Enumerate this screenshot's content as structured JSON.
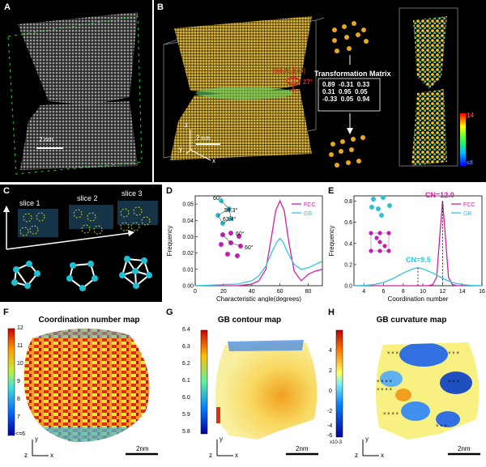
{
  "panels": {
    "A": {
      "letter": "A",
      "scale": "2 nm"
    },
    "B": {
      "letter": "B",
      "scale": "2 nm",
      "axis_z": "z",
      "axis_y": "y",
      "axis_x": "x",
      "rotation": "[0,0.73,0.69]",
      "angle": "27°",
      "matrix_title": "Transformation Matrix",
      "matrix": [
        [
          "0.89",
          "-0.31",
          "0.33"
        ],
        [
          "0.31",
          "0.95",
          "0.05"
        ],
        [
          "-0.33",
          "0.05",
          "0.94"
        ]
      ],
      "cbar_max": "14",
      "cbar_min": "≤8"
    },
    "C": {
      "letter": "C",
      "slices": [
        "slice 1",
        "slice 2",
        "slice 3"
      ]
    },
    "D": {
      "letter": "D",
      "angles": [
        "60°",
        "58.3°",
        "63.4°",
        "60°",
        "60°"
      ]
    },
    "E": {
      "letter": "E",
      "cn_fcc": "CN=12.0",
      "cn_gb": "CN=9.5"
    },
    "F": {
      "letter": "F",
      "title": "Coordination number map",
      "cbar_ticks": [
        "12",
        "11",
        "10",
        "9",
        "8",
        "7",
        "<=6"
      ],
      "scale": "2nm",
      "ax_z": "z",
      "ax_y": "y",
      "ax_x": "x"
    },
    "G": {
      "letter": "G",
      "title": "GB contour map",
      "cbar_ticks": [
        "6.4",
        "6.3",
        "6.2",
        "6.1",
        "6.0",
        "5.9",
        "5.8"
      ],
      "scale": "2nm",
      "ax_z": "z",
      "ax_y": "y",
      "ax_x": "x"
    },
    "H": {
      "letter": "H",
      "title": "GB curvature map",
      "cbar_ticks": [
        "4",
        "2",
        "0",
        "-2",
        "-4",
        "-6"
      ],
      "cbar_exp": "x10-3",
      "scale": "2nm",
      "ax_z": "z",
      "ax_y": "y",
      "ax_x": "x"
    }
  },
  "chart_data": [
    {
      "type": "line",
      "panel": "D",
      "xlabel": "Characteristic angle(degrees)",
      "ylabel": "Frequency",
      "xlim": [
        0,
        90
      ],
      "ylim": [
        0,
        0.055
      ],
      "xticks": [
        "0",
        "20",
        "40",
        "60",
        "80"
      ],
      "yticks": [
        "0.00",
        "0.01",
        "0.02",
        "0.03",
        "0.04",
        "0.05"
      ],
      "series": [
        {
          "name": "FCC",
          "color": "#d020a0",
          "x": [
            0,
            30,
            40,
            45,
            50,
            54,
            57,
            60,
            63,
            66,
            70,
            75,
            80,
            85,
            90
          ],
          "y": [
            0,
            0,
            0.001,
            0.003,
            0.01,
            0.03,
            0.046,
            0.052,
            0.046,
            0.028,
            0.009,
            0.003,
            0.007,
            0.009,
            0.01
          ]
        },
        {
          "name": "GB",
          "color": "#30c8d8",
          "x": [
            0,
            30,
            40,
            45,
            50,
            55,
            58,
            60,
            62,
            65,
            70,
            75,
            80,
            85,
            90
          ],
          "y": [
            0,
            0.001,
            0.003,
            0.006,
            0.012,
            0.022,
            0.027,
            0.029,
            0.027,
            0.021,
            0.013,
            0.01,
            0.011,
            0.013,
            0.015
          ]
        }
      ]
    },
    {
      "type": "line",
      "panel": "E",
      "xlabel": "Coordination number",
      "ylabel": "Frequency",
      "xlim": [
        3,
        16
      ],
      "ylim": [
        0,
        0.85
      ],
      "xticks": [
        "4",
        "6",
        "8",
        "10",
        "12",
        "14",
        "16"
      ],
      "yticks": [
        "0.0",
        "0.2",
        "0.4",
        "0.6",
        "0.8"
      ],
      "series": [
        {
          "name": "FCC",
          "color": "#d020a0",
          "x": [
            3,
            10.5,
            11,
            11.4,
            11.7,
            12,
            12.3,
            12.6,
            13,
            13.5,
            16
          ],
          "y": [
            0,
            0,
            0.01,
            0.08,
            0.45,
            0.8,
            0.45,
            0.08,
            0.01,
            0,
            0
          ]
        },
        {
          "name": "GB",
          "color": "#30c8d8",
          "x": [
            3,
            4,
            5,
            6,
            7,
            8,
            9,
            9.5,
            10,
            11,
            12,
            13,
            14,
            15,
            16
          ],
          "y": [
            0,
            0.003,
            0.01,
            0.03,
            0.07,
            0.12,
            0.16,
            0.17,
            0.16,
            0.12,
            0.07,
            0.03,
            0.01,
            0.003,
            0
          ]
        }
      ]
    }
  ]
}
